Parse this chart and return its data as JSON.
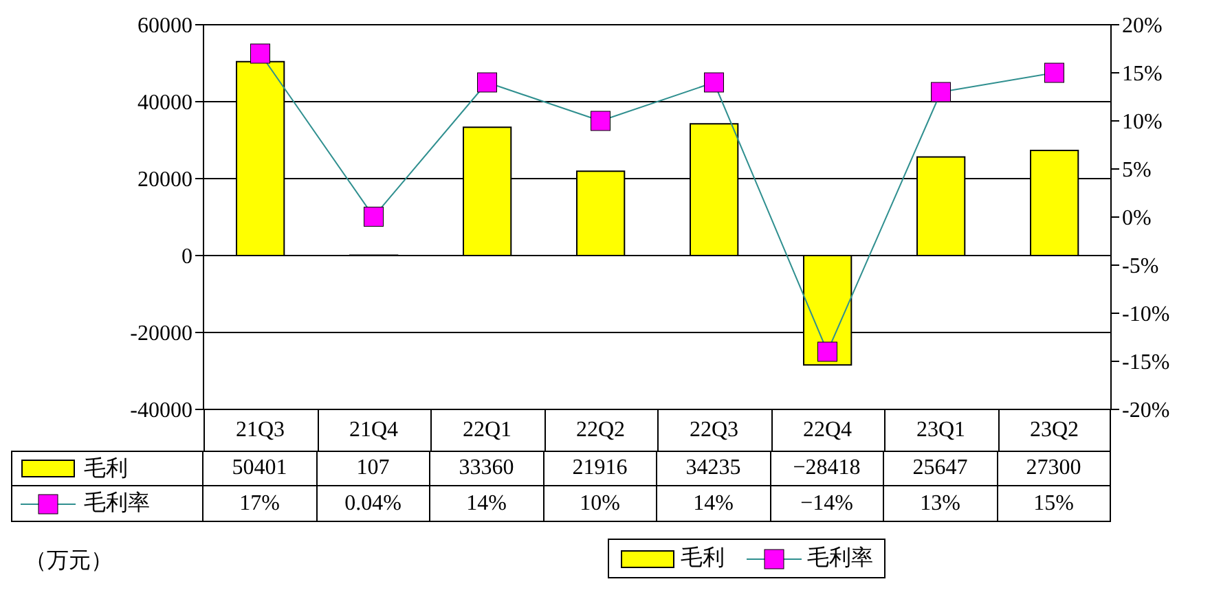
{
  "chart_data": {
    "type": "bar",
    "categories": [
      "21Q3",
      "21Q4",
      "22Q1",
      "22Q2",
      "22Q3",
      "22Q4",
      "23Q1",
      "23Q2"
    ],
    "series": [
      {
        "name": "毛利",
        "color": "#ffff00",
        "values": [
          50401,
          107,
          33360,
          21916,
          34235,
          -28418,
          25647,
          27300
        ],
        "value_labels": [
          "50401",
          "107",
          "33360",
          "21916",
          "34235",
          "−28418",
          "25647",
          "27300"
        ]
      },
      {
        "name": "毛利率",
        "type": "line",
        "axis": "y2",
        "color": "#ff00ff",
        "values": [
          17,
          0.04,
          14,
          10,
          14,
          -14,
          13,
          15
        ],
        "value_labels": [
          "17%",
          "0.04%",
          "14%",
          "10%",
          "14%",
          "−14%",
          "13%",
          "15%"
        ]
      }
    ],
    "ylim": [
      -40000,
      60000
    ],
    "yticks": [
      -40000,
      -20000,
      0,
      20000,
      40000,
      60000
    ],
    "y2lim": [
      -20,
      20
    ],
    "y2ticks": [
      {
        "value": -20,
        "label": "-20%"
      },
      {
        "value": -15,
        "label": "-15%"
      },
      {
        "value": -10,
        "label": "-10%"
      },
      {
        "value": -5,
        "label": "-5%"
      },
      {
        "value": 0,
        "label": "0%"
      },
      {
        "value": 5,
        "label": "5%"
      },
      {
        "value": 10,
        "label": "10%"
      },
      {
        "value": 15,
        "label": "15%"
      },
      {
        "value": 20,
        "label": "20%"
      }
    ],
    "grid": "y",
    "legend": "bottom",
    "marker": "square",
    "line_style": "solid",
    "annotations": [
      "（万元）"
    ]
  }
}
